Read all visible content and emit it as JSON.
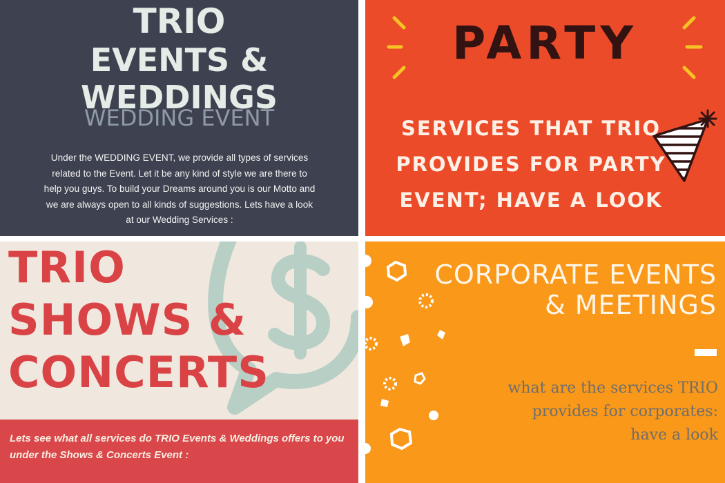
{
  "wedding": {
    "title_line1": "TRIO",
    "title_line2": "EVENTS & WEDDINGS",
    "subtitle": "WEDDING EVENT",
    "body_lines": [
      "Under the WEDDING EVENT, we provide all types of services",
      "related to the Event. Let it be any kind of style we are there to",
      "help you guys. To build your Dreams around you is our Motto and",
      "we are always open to all kinds of suggestions. Lets have a look",
      "at our Wedding Services :"
    ],
    "colors": {
      "background": "#3e4250",
      "title": "#e3ece6",
      "subtitle": "#8e9aa6"
    }
  },
  "party": {
    "title": "PARTY",
    "lines": [
      "SERVICES THAT TRIO",
      "PROVIDES FOR PARTY",
      "EVENT; HAVE A LOOK"
    ],
    "icons": [
      "sparkle-lines-icon",
      "party-hat-icon"
    ],
    "colors": {
      "background": "#ec4b2a",
      "title": "#321312",
      "accent": "#f6c324"
    }
  },
  "shows": {
    "title_lines": [
      "TRIO",
      "SHOWS &",
      "CONCERTS"
    ],
    "band_lines": [
      "Lets see what all  services do TRIO Events & Weddings offers to you",
      "under  the Shows & Concerts Event :"
    ],
    "icons": [
      "dollar-speech-bubble-icon"
    ],
    "colors": {
      "background": "#f0e8de",
      "title": "#d94346",
      "band": "#d9474a",
      "graphic": "#b8cfc6"
    }
  },
  "corporate": {
    "title_lines": [
      "CORPORATE EVENTS",
      "& MEETINGS"
    ],
    "sub_lines": [
      "what are the services TRIO",
      "provides for corporates:",
      "have a look"
    ],
    "icons": [
      "confetti-shapes-icon"
    ],
    "colors": {
      "background": "#f99819",
      "title": "#fff6ea",
      "subtitle": "#6e6e6e"
    }
  }
}
